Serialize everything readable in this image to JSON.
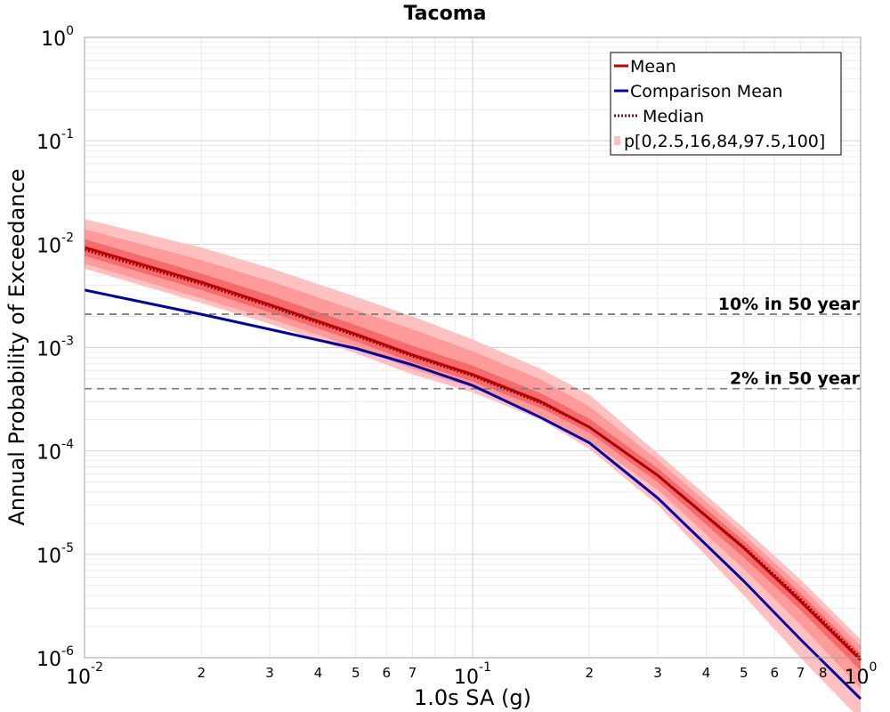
{
  "chart_data": {
    "type": "line",
    "title": "Tacoma",
    "xlabel": "1.0s SA (g)",
    "ylabel": "Annual Probability of Exceedance",
    "xscale": "log",
    "yscale": "log",
    "xlim": [
      0.01,
      1
    ],
    "ylim": [
      1e-06,
      1
    ],
    "grid": true,
    "legend_position": "top-right",
    "x_major_ticks": [
      {
        "value": 0.01,
        "base": "10",
        "exp": "-2"
      },
      {
        "value": 0.1,
        "base": "10",
        "exp": "-1"
      },
      {
        "value": 1,
        "base": "10",
        "exp": "0"
      }
    ],
    "x_minor_ticks": [
      {
        "value": 0.02,
        "label": "2"
      },
      {
        "value": 0.03,
        "label": "3"
      },
      {
        "value": 0.04,
        "label": "4"
      },
      {
        "value": 0.05,
        "label": "5"
      },
      {
        "value": 0.06,
        "label": "6"
      },
      {
        "value": 0.07,
        "label": "7"
      },
      {
        "value": 0.2,
        "label": "2"
      },
      {
        "value": 0.3,
        "label": "3"
      },
      {
        "value": 0.4,
        "label": "4"
      },
      {
        "value": 0.5,
        "label": "5"
      },
      {
        "value": 0.6,
        "label": "6"
      },
      {
        "value": 0.7,
        "label": "7"
      },
      {
        "value": 0.8,
        "label": "8"
      }
    ],
    "y_major_ticks": [
      {
        "value": 1,
        "base": "10",
        "exp": "0"
      },
      {
        "value": 0.1,
        "base": "10",
        "exp": "-1"
      },
      {
        "value": 0.01,
        "base": "10",
        "exp": "-2"
      },
      {
        "value": 0.001,
        "base": "10",
        "exp": "-3"
      },
      {
        "value": 0.0001,
        "base": "10",
        "exp": "-4"
      },
      {
        "value": 1e-05,
        "base": "10",
        "exp": "-5"
      },
      {
        "value": 1e-06,
        "base": "10",
        "exp": "-6"
      }
    ],
    "x": [
      0.01,
      0.02,
      0.03,
      0.05,
      0.07,
      0.1,
      0.15,
      0.2,
      0.3,
      0.5,
      0.7,
      1.0
    ],
    "series": [
      {
        "name": "Mean",
        "color": "#c00000",
        "style": "solid",
        "values": [
          0.0093,
          0.0043,
          0.0026,
          0.00135,
          0.00085,
          0.00055,
          0.0003,
          0.00017,
          5.8e-05,
          1.15e-05,
          3.5e-06,
          9.5e-07
        ]
      },
      {
        "name": "Comparison Mean",
        "color": "#0000a8",
        "style": "solid",
        "values": [
          0.0036,
          0.0021,
          0.0015,
          0.00098,
          0.00068,
          0.00043,
          0.00021,
          0.00012,
          3.5e-05,
          5.5e-06,
          1.5e-06,
          4e-07
        ]
      },
      {
        "name": "Median",
        "color": "#c00000",
        "style": "dotted",
        "values": [
          0.0088,
          0.0041,
          0.0025,
          0.0013,
          0.00082,
          0.00053,
          0.00029,
          0.00017,
          5.8e-05,
          1.18e-05,
          3.7e-06,
          1e-06
        ]
      }
    ],
    "band_series_name": "p[0,2.5,16,84,97.5,100]",
    "bands": [
      {
        "lower_percentile": 0,
        "upper_percentile": 100,
        "color": "#ffc0c0",
        "lower": [
          0.0058,
          0.0027,
          0.0017,
          0.00088,
          0.00055,
          0.00037,
          0.0002,
          0.000105,
          3e-05,
          4e-06,
          1e-06,
          2.5e-07
        ],
        "upper": [
          0.0175,
          0.0093,
          0.0059,
          0.0031,
          0.002,
          0.0012,
          0.00062,
          0.00035,
          9.5e-05,
          1.8e-05,
          5.7e-06,
          1.5e-06
        ]
      },
      {
        "lower_percentile": 2.5,
        "upper_percentile": 97.5,
        "color": "#ff9a9a",
        "lower": [
          0.0065,
          0.003,
          0.0019,
          0.001,
          0.00062,
          0.00041,
          0.00022,
          0.000125,
          4.2e-05,
          7.2e-06,
          2.1e-06,
          5e-07
        ],
        "upper": [
          0.014,
          0.007,
          0.0044,
          0.0023,
          0.0015,
          0.00092,
          0.00049,
          0.00027,
          8.2e-05,
          1.55e-05,
          4.9e-06,
          1.3e-06
        ]
      },
      {
        "lower_percentile": 16,
        "upper_percentile": 84,
        "color": "#f56a6a",
        "lower": [
          0.0077,
          0.0036,
          0.0022,
          0.00115,
          0.00072,
          0.00047,
          0.00026,
          0.00015,
          5e-05,
          9.3e-06,
          2.9e-06,
          7.5e-07
        ],
        "upper": [
          0.0112,
          0.0052,
          0.0032,
          0.00165,
          0.00104,
          0.00067,
          0.00036,
          0.000205,
          6.8e-05,
          1.35e-05,
          4.2e-06,
          1.1e-06
        ]
      }
    ],
    "reference_lines": [
      {
        "label": "10% in 50 year",
        "y": 0.0021
      },
      {
        "label": "2% in 50 year",
        "y": 0.0004
      }
    ]
  }
}
